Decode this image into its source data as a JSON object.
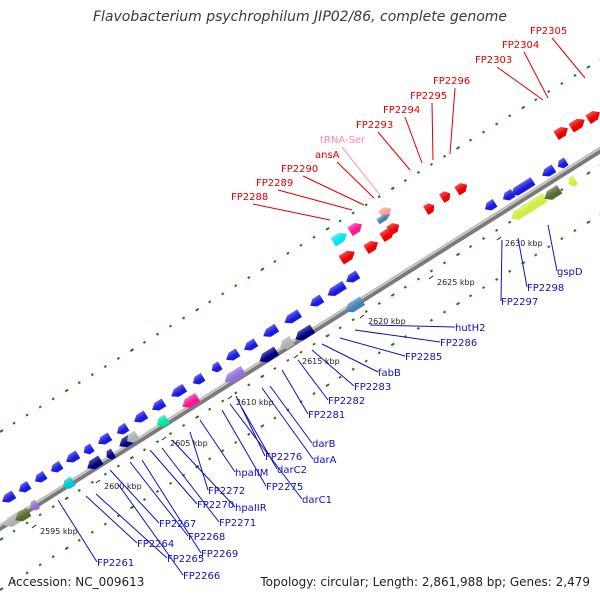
{
  "title": "Flavobacterium psychrophilum JIP02/86, complete genome",
  "footer": {
    "accession": "Accession: NC_009613",
    "summary": "Topology: circular; Length: 2,861,988 bp; Genes: 2,479"
  },
  "colors": {
    "forward_label": "#e00000",
    "rna_label": "#ff88aa",
    "reverse_label": "#1010c0",
    "backbone": "#909090",
    "tick": "#1a7a1a"
  },
  "ticks": [
    {
      "label": "2595 kbp"
    },
    {
      "label": "2600 kbp"
    },
    {
      "label": "2605 kbp"
    },
    {
      "label": "2610 kbp"
    },
    {
      "label": "2615 kbp"
    },
    {
      "label": "2620 kbp"
    },
    {
      "label": "2625 kbp"
    },
    {
      "label": "2630 kbp"
    }
  ],
  "upper_labels": [
    {
      "text": "FP2305",
      "kind": "forward"
    },
    {
      "text": "FP2304",
      "kind": "forward"
    },
    {
      "text": "FP2303",
      "kind": "forward"
    },
    {
      "text": "FP2296",
      "kind": "forward"
    },
    {
      "text": "FP2295",
      "kind": "forward"
    },
    {
      "text": "FP2294",
      "kind": "forward"
    },
    {
      "text": "FP2293",
      "kind": "forward"
    },
    {
      "text": "tRNA-Ser",
      "kind": "rna"
    },
    {
      "text": "ansA",
      "kind": "forward"
    },
    {
      "text": "FP2290",
      "kind": "forward"
    },
    {
      "text": "FP2289",
      "kind": "forward"
    },
    {
      "text": "FP2288",
      "kind": "forward"
    }
  ],
  "lower_labels": [
    {
      "text": "gspD"
    },
    {
      "text": "FP2298"
    },
    {
      "text": "FP2297"
    },
    {
      "text": "hutH2"
    },
    {
      "text": "FP2286"
    },
    {
      "text": "FP2285"
    },
    {
      "text": "fabB"
    },
    {
      "text": "FP2283"
    },
    {
      "text": "FP2282"
    },
    {
      "text": "FP2281"
    },
    {
      "text": "darA"
    },
    {
      "text": "darB"
    },
    {
      "text": "FP2276"
    },
    {
      "text": "darC2"
    },
    {
      "text": "darC1"
    },
    {
      "text": "FP2275"
    },
    {
      "text": "hpaIIM"
    },
    {
      "text": "FP2272"
    },
    {
      "text": "hpaIIR"
    },
    {
      "text": "FP2271"
    },
    {
      "text": "FP2270"
    },
    {
      "text": "FP2269"
    },
    {
      "text": "FP2268"
    },
    {
      "text": "FP2267"
    },
    {
      "text": "FP2266"
    },
    {
      "text": "FP2265"
    },
    {
      "text": "FP2264"
    },
    {
      "text": "FP2261"
    }
  ],
  "forward_genes": [
    {
      "name": "FP2288",
      "color": "#00e5ee"
    },
    {
      "name": "FP2289",
      "color": "#ff1493"
    },
    {
      "name": "FP2290",
      "color": "#ee0000"
    },
    {
      "name": "ansA",
      "color": "#ee0000"
    },
    {
      "name": "tRNA-Ser",
      "color": "#ff9999"
    },
    {
      "name": "FP2293",
      "color": "#ee0000"
    },
    {
      "name": "FP2294",
      "color": "#ee0000"
    },
    {
      "name": "FP2295",
      "color": "#ee0000"
    },
    {
      "name": "FP2296",
      "color": "#ee0000"
    },
    {
      "name": "FP2303",
      "color": "#ee0000"
    },
    {
      "name": "FP2304",
      "color": "#ee0000"
    },
    {
      "name": "FP2305",
      "color": "#ee0000"
    }
  ],
  "reverse_gene_colors": [
    "#1a1ae0",
    "#000080",
    "#9370db",
    "#ff1493",
    "#00e5a0",
    "#00c5cd",
    "#556b2f",
    "#b0b0b0",
    "#ccee44",
    "#4682b4"
  ]
}
